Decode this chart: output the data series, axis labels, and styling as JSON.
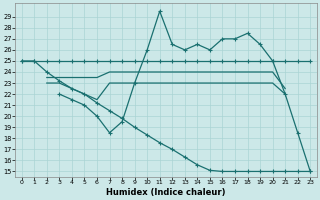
{
  "xlabel": "Humidex (Indice chaleur)",
  "bg_color": "#cce8e8",
  "line_color": "#1a7070",
  "grid_color": "#aad4d4",
  "x": [
    0,
    1,
    2,
    3,
    4,
    5,
    6,
    7,
    8,
    9,
    10,
    11,
    12,
    13,
    14,
    15,
    16,
    17,
    18,
    19,
    20,
    21,
    22,
    23
  ],
  "ylim_min": 14.5,
  "ylim_max": 30.2,
  "yticks": [
    15,
    16,
    17,
    18,
    19,
    20,
    21,
    22,
    23,
    24,
    25,
    26,
    27,
    28,
    29
  ],
  "line1_x": [
    0,
    1,
    2,
    3,
    4,
    5,
    6,
    7,
    8,
    9,
    10,
    11,
    12,
    13,
    14,
    15,
    16,
    17,
    18,
    19,
    20,
    21,
    22,
    23
  ],
  "line1_y": [
    25,
    25,
    25,
    25,
    25,
    25,
    25,
    25,
    25,
    25,
    25,
    25,
    25,
    25,
    25,
    25,
    25,
    25,
    25,
    25,
    25,
    25,
    25,
    25
  ],
  "line2_x": [
    2,
    3,
    4,
    5,
    6,
    7,
    8,
    9,
    10,
    11,
    12,
    13,
    14,
    15,
    16,
    17,
    18,
    19,
    20,
    21
  ],
  "line2_y": [
    23.5,
    23.5,
    23.5,
    23.5,
    23.5,
    24,
    24,
    24,
    24,
    24,
    24,
    24,
    24,
    24,
    24,
    24,
    24,
    24,
    24,
    22.5
  ],
  "line3_x": [
    2,
    3,
    4,
    5,
    6,
    7,
    8,
    9,
    10,
    11,
    12,
    13,
    14,
    15,
    16,
    17,
    18,
    19,
    20,
    21
  ],
  "line3_y": [
    23,
    23,
    22.5,
    22,
    21.5,
    23,
    23,
    23,
    23,
    23,
    23,
    23,
    23,
    23,
    23,
    23,
    23,
    23,
    23,
    22
  ],
  "line4_x": [
    3,
    4,
    5,
    6,
    7,
    8,
    9,
    10,
    11,
    12,
    13,
    14,
    15,
    16,
    17,
    18,
    19,
    20,
    21,
    22,
    23
  ],
  "line4_y": [
    22,
    21.5,
    21,
    20,
    18.5,
    19.5,
    23,
    26,
    29.5,
    26.5,
    26,
    26.5,
    26,
    27,
    27,
    27.5,
    26.5,
    25,
    22,
    18.5,
    15
  ],
  "line5_x": [
    0,
    1,
    2,
    3,
    4,
    5,
    6,
    7,
    8,
    9,
    10,
    11,
    12,
    13,
    14,
    15,
    16,
    17,
    18,
    19,
    20,
    21,
    22,
    23
  ],
  "line5_y": [
    25,
    25,
    24,
    23.2,
    22.5,
    22,
    21.2,
    20.5,
    19.8,
    19,
    18.3,
    17.6,
    17,
    16.3,
    15.6,
    15.1,
    15,
    15,
    15,
    15,
    15,
    15,
    15,
    15
  ]
}
